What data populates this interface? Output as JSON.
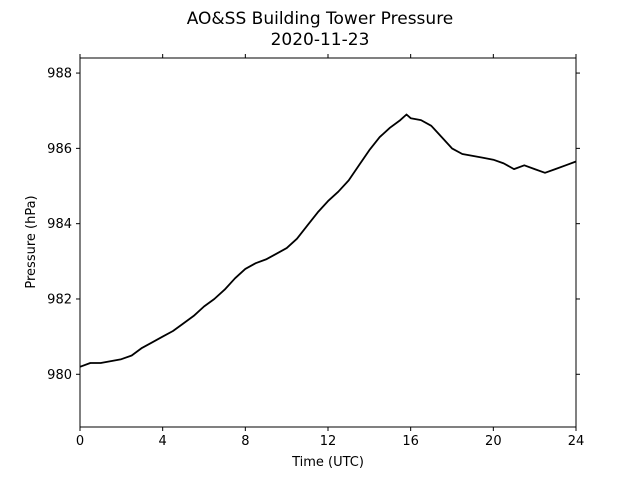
{
  "chart_data": {
    "type": "line",
    "title": "AO&SS Building Tower Pressure",
    "subtitle": "2020-11-23",
    "xlabel": "Time (UTC)",
    "ylabel": "Pressure (hPa)",
    "xlim": [
      0,
      24
    ],
    "ylim": [
      978.6,
      988.4
    ],
    "xticks": [
      0,
      4,
      8,
      12,
      16,
      20,
      24
    ],
    "yticks": [
      980,
      982,
      984,
      986,
      988
    ],
    "grid": false,
    "line_color": "#000000",
    "series": [
      {
        "x": [
          0,
          0.5,
          1,
          1.5,
          2,
          2.5,
          3,
          3.5,
          4,
          4.5,
          5,
          5.5,
          6,
          6.5,
          7,
          7.5,
          8,
          8.5,
          9,
          9.5,
          10,
          10.5,
          11,
          11.5,
          12,
          12.5,
          13,
          13.5,
          14,
          14.5,
          15,
          15.5,
          15.8,
          16,
          16.5,
          17,
          17.5,
          18,
          18.5,
          19,
          19.5,
          20,
          20.5,
          21,
          21.5,
          22,
          22.5,
          23,
          23.5,
          24
        ],
        "y": [
          980.2,
          980.3,
          980.3,
          980.35,
          980.4,
          980.5,
          980.7,
          980.85,
          981.0,
          981.15,
          981.35,
          981.55,
          981.8,
          982.0,
          982.25,
          982.55,
          982.8,
          982.95,
          983.05,
          983.2,
          983.35,
          983.6,
          983.95,
          984.3,
          984.6,
          984.85,
          985.15,
          985.55,
          985.95,
          986.3,
          986.55,
          986.75,
          986.9,
          986.8,
          986.75,
          986.6,
          986.3,
          986.0,
          985.85,
          985.8,
          985.75,
          985.7,
          985.6,
          985.45,
          985.55,
          985.45,
          985.35,
          985.45,
          985.55,
          985.65
        ]
      }
    ]
  }
}
